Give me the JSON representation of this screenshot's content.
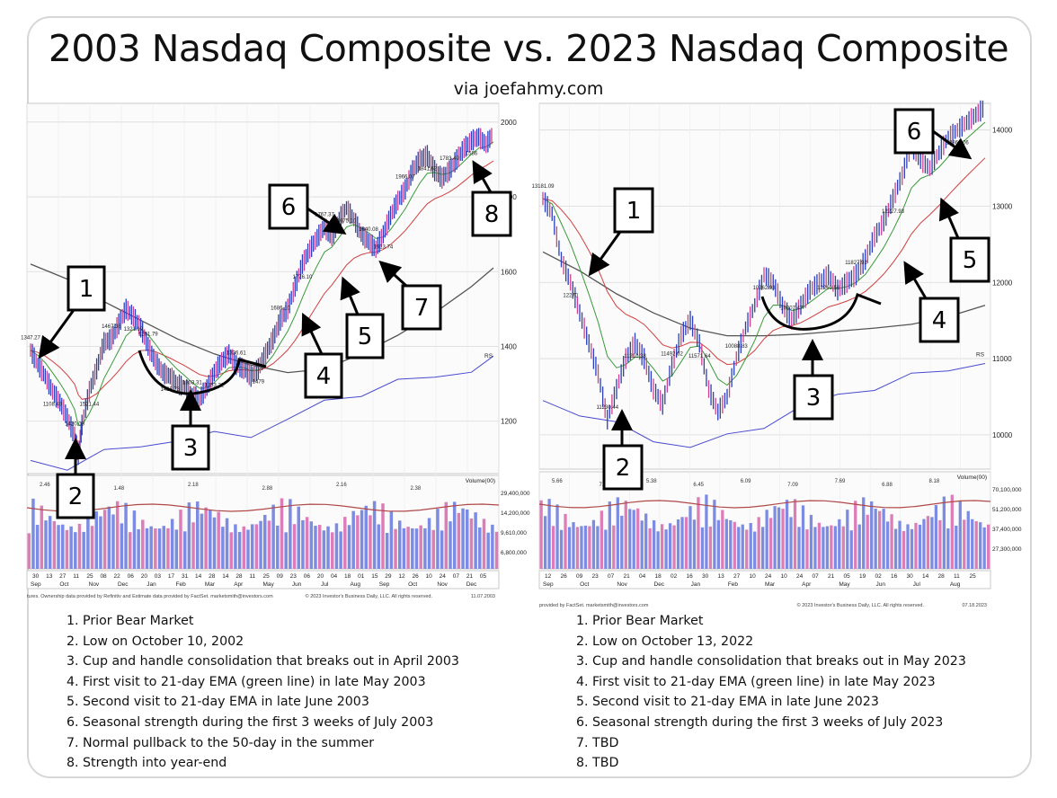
{
  "header": {
    "title": "2003 Nasdaq Composite vs. 2023 Nasdaq Composite",
    "subtitle": "via joefahmy.com"
  },
  "chart_data": [
    {
      "type": "line",
      "y_ticks": [
        "1200",
        "1400",
        "1600",
        "1800",
        "2000"
      ],
      "y_range": [
        1060,
        2050
      ],
      "volume_label": "Volume(00)",
      "volume_ticks": [
        "29,400,000",
        "14,200,000",
        "9,610,000",
        "6,800,000"
      ],
      "x_ticks": [
        "30",
        "13",
        "27",
        "11",
        "25",
        "08",
        "22",
        "06",
        "20",
        "03",
        "17",
        "31",
        "14",
        "28",
        "14",
        "28",
        "11",
        "25",
        "09",
        "23",
        "06",
        "20",
        "04",
        "18",
        "01",
        "15",
        "29",
        "12",
        "26",
        "10",
        "24",
        "07",
        "21",
        "05"
      ],
      "x_months": [
        "Sep",
        "Oct",
        "Nov",
        "Dec",
        "Jan",
        "Feb",
        "Mar",
        "Apr",
        "May",
        "Jun",
        "Jul",
        "Aug",
        "Sep",
        "Oct",
        "Nov",
        "Dec"
      ],
      "price_labels": [
        "1347.27",
        "1108.49",
        "1420.03",
        "1521.44",
        "1467.36",
        "1321.19",
        "1261.79",
        "1425.73",
        "1303.31",
        "1253.22",
        "1336.61",
        "1479",
        "1686.10",
        "1776.10",
        "1767.37",
        "1675.10",
        "1640.08",
        "1913.74",
        "1966.07",
        "1841.62",
        "1783.49",
        "1586"
      ],
      "rs_label": "RS",
      "volume_values": [
        "2.46",
        "1.48",
        "2.18",
        "2.88",
        "2.16",
        "2.38"
      ],
      "footer": "tures. Ownership data provided by Refinitiv and Estimate data provided by FactSet. marketsmith@investors.com",
      "copyright": "© 2023 Investor's Business Daily, LLC. All rights reserved.",
      "date": "11.07.2003",
      "callouts": [
        "1",
        "2",
        "3",
        "4",
        "5",
        "6",
        "7",
        "8"
      ],
      "series": [
        {
          "name": "Price",
          "x": [
            0,
            8,
            16,
            24,
            32,
            40,
            48,
            52,
            56,
            64,
            72,
            80,
            88,
            96,
            104,
            112,
            120,
            128,
            136,
            144,
            152,
            160,
            168,
            176,
            184,
            192,
            200,
            208,
            216,
            224,
            232,
            240,
            248,
            256,
            264,
            272,
            280,
            288,
            296,
            304,
            312,
            320,
            328,
            336,
            344,
            352,
            360,
            368,
            376,
            384,
            392,
            400,
            408,
            416,
            424,
            432,
            440,
            448,
            456,
            464,
            472,
            480,
            488,
            496,
            504
          ],
          "y": [
            1390,
            1350,
            1320,
            1280,
            1250,
            1210,
            1160,
            1110,
            1190,
            1280,
            1340,
            1410,
            1420,
            1460,
            1500,
            1480,
            1450,
            1400,
            1360,
            1330,
            1320,
            1300,
            1290,
            1270,
            1260,
            1290,
            1330,
            1360,
            1380,
            1350,
            1340,
            1320,
            1340,
            1380,
            1420,
            1470,
            1500,
            1560,
            1620,
            1660,
            1690,
            1720,
            1690,
            1740,
            1770,
            1740,
            1700,
            1680,
            1660,
            1700,
            1750,
            1790,
            1820,
            1870,
            1900,
            1910,
            1870,
            1850,
            1870,
            1900,
            1930,
            1950,
            1960,
            1940,
            1970
          ]
        },
        {
          "name": "200-day",
          "x": [
            0,
            40,
            80,
            120,
            160,
            200,
            240,
            280,
            320,
            360,
            400,
            440,
            480,
            504
          ],
          "y": [
            1620,
            1580,
            1520,
            1470,
            1420,
            1380,
            1350,
            1330,
            1340,
            1380,
            1430,
            1490,
            1560,
            1610
          ]
        },
        {
          "name": "RS",
          "x": [
            0,
            40,
            80,
            120,
            160,
            200,
            240,
            280,
            320,
            360,
            400,
            440,
            480,
            504
          ],
          "y": [
            1095,
            1080,
            1110,
            1140,
            1150,
            1160,
            1170,
            1200,
            1250,
            1280,
            1300,
            1320,
            1340,
            1360
          ]
        }
      ]
    },
    {
      "type": "line",
      "y_ticks": [
        "10000",
        "11000",
        "12000",
        "13000",
        "14000"
      ],
      "y_range": [
        9550,
        14350
      ],
      "volume_label": "Volume(00)",
      "volume_ticks": [
        "70,100,000",
        "51,200,000",
        "37,400,000",
        "27,300,000"
      ],
      "x_ticks": [
        "12",
        "26",
        "09",
        "23",
        "07",
        "21",
        "04",
        "18",
        "02",
        "16",
        "30",
        "13",
        "27",
        "10",
        "24",
        "10",
        "24",
        "07",
        "21",
        "05",
        "19",
        "02",
        "16",
        "30",
        "14",
        "28",
        "11",
        "25"
      ],
      "x_months": [
        "Sep",
        "Oct",
        "Nov",
        "Dec",
        "Jan",
        "Feb",
        "Mar",
        "Apr",
        "May",
        "Jun",
        "Jul",
        "Aug"
      ],
      "price_labels": [
        "13181.09",
        "12270",
        "11230.44",
        "11210.38",
        "11492.62",
        "11571.64",
        "10088.83",
        "10262.93",
        "10207.47",
        "12269.56",
        "11827.92",
        "12227.93",
        "11796.77",
        "13864.06"
      ],
      "rs_label": "RS",
      "volume_values": [
        "5.66",
        "7.58",
        "5.38",
        "6.45",
        "6.09",
        "7.09",
        "7.69",
        "6.88",
        "8.18"
      ],
      "footer": "provided by FactSet. marketsmith@investors.com",
      "copyright": "© 2023 Investor's Business Daily, LLC. All rights reserved.",
      "date": "07.18.2023",
      "callouts": [
        "1",
        "2",
        "3",
        "4",
        "5",
        "6"
      ],
      "series": [
        {
          "name": "Price",
          "x": [
            0,
            10,
            20,
            30,
            40,
            50,
            60,
            70,
            80,
            90,
            100,
            110,
            120,
            130,
            140,
            150,
            160,
            170,
            180,
            190,
            200,
            210,
            220,
            230,
            240,
            250,
            260,
            270,
            280,
            290,
            300,
            310,
            320,
            330,
            340,
            350,
            360,
            370,
            380,
            390,
            400,
            410,
            420,
            430,
            440,
            450,
            460,
            470,
            480
          ],
          "y": [
            13100,
            12900,
            12300,
            12000,
            11600,
            11200,
            10800,
            10200,
            10600,
            11000,
            11200,
            11000,
            10600,
            10400,
            10900,
            11300,
            11500,
            11200,
            10600,
            10300,
            10500,
            11000,
            11400,
            11700,
            12100,
            12000,
            11700,
            11500,
            11700,
            11900,
            12000,
            12100,
            11900,
            12000,
            12100,
            12300,
            12600,
            12800,
            13100,
            13400,
            13800,
            13600,
            13500,
            13700,
            13900,
            14000,
            14100,
            14200,
            14300
          ]
        },
        {
          "name": "200-day",
          "x": [
            0,
            40,
            80,
            120,
            160,
            200,
            240,
            280,
            320,
            360,
            400,
            440,
            480
          ],
          "y": [
            12400,
            12150,
            11850,
            11600,
            11400,
            11300,
            11300,
            11320,
            11360,
            11400,
            11450,
            11550,
            11700
          ]
        },
        {
          "name": "RS",
          "x": [
            0,
            40,
            80,
            120,
            160,
            200,
            240,
            280,
            320,
            360,
            400,
            440,
            480
          ],
          "y": [
            10450,
            10300,
            10100,
            9950,
            9850,
            9950,
            10150,
            10350,
            10500,
            10650,
            10750,
            10850,
            10980
          ]
        }
      ]
    }
  ],
  "notes": {
    "left": [
      "1. Prior Bear Market",
      "2. Low on October 10, 2002",
      "3. Cup and handle consolidation that breaks out in April 2003",
      "4. First visit to 21-day EMA (green line) in late May 2003",
      "5. Second visit to 21-day EMA in late June 2003",
      "6. Seasonal strength during the first 3 weeks of July 2003",
      "7. Normal pullback to the 50-day in the summer",
      "8. Strength into year-end"
    ],
    "right": [
      "1. Prior Bear Market",
      "2. Low on October 13, 2022",
      "3. Cup and handle consolidation that breaks out in May 2023",
      "4. First visit to 21-day EMA (green line) in late May 2023",
      "5. Second visit to 21-day EMA in late June 2023",
      "6. Seasonal strength during the first 3 weeks of July 2023",
      "7. TBD",
      "8. TBD"
    ]
  }
}
